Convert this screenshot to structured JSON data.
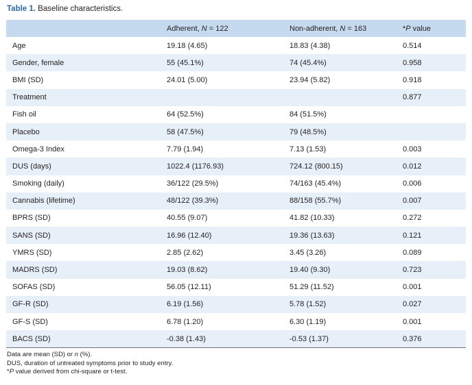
{
  "caption": {
    "label": "Table 1.",
    "text": "Baseline characteristics."
  },
  "table": {
    "header": {
      "col1": "",
      "col2_prefix": "Adherent, ",
      "col2_var": "N",
      "col2_suffix": " = 122",
      "col3_prefix": "Non-adherent, ",
      "col3_var": "N",
      "col3_suffix": " = 163",
      "col4_star": "*",
      "col4_var": "P",
      "col4_suffix": " value"
    },
    "rows": [
      {
        "label": "Age",
        "adherent": "19.18 (4.65)",
        "non_adherent": "18.83 (4.38)",
        "p": "0.514"
      },
      {
        "label": "Gender, female",
        "adherent": "55 (45.1%)",
        "non_adherent": "74 (45.4%)",
        "p": "0.958"
      },
      {
        "label": "BMI (SD)",
        "adherent": "24.01 (5.00)",
        "non_adherent": "23.94 (5.82)",
        "p": "0.918"
      },
      {
        "label": "Treatment",
        "adherent": "",
        "non_adherent": "",
        "p": "0.877"
      },
      {
        "label": "Fish oil",
        "adherent": "64 (52.5%)",
        "non_adherent": "84 (51.5%)",
        "p": ""
      },
      {
        "label": "Placebo",
        "adherent": "58 (47.5%)",
        "non_adherent": "79 (48.5%)",
        "p": ""
      },
      {
        "label": "Omega-3 Index",
        "adherent": "7.79 (1.94)",
        "non_adherent": "7.13 (1.53)",
        "p": "0.003"
      },
      {
        "label": "DUS (days)",
        "adherent": "1022.4 (1176.93)",
        "non_adherent": "724.12 (800.15)",
        "p": "0.012"
      },
      {
        "label": "Smoking (daily)",
        "adherent": "36/122 (29.5%)",
        "non_adherent": "74/163 (45.4%)",
        "p": "0.006"
      },
      {
        "label": "Cannabis (lifetime)",
        "adherent": "48/122 (39.3%)",
        "non_adherent": "88/158 (55.7%)",
        "p": "0.007"
      },
      {
        "label": "BPRS (SD)",
        "adherent": "40.55 (9.07)",
        "non_adherent": "41.82 (10.33)",
        "p": "0.272"
      },
      {
        "label": "SANS (SD)",
        "adherent": "16.96 (12.40)",
        "non_adherent": "19.36 (13.63)",
        "p": "0.121"
      },
      {
        "label": "YMRS (SD)",
        "adherent": "2.85 (2.62)",
        "non_adherent": "3.45 (3.26)",
        "p": "0.089"
      },
      {
        "label": "MADRS (SD)",
        "adherent": "19.03 (8.62)",
        "non_adherent": "19.40 (9.30)",
        "p": "0.723"
      },
      {
        "label": "SOFAS (SD)",
        "adherent": "56.05 (12.11)",
        "non_adherent": "51.29 (11.52)",
        "p": "0.001"
      },
      {
        "label": "GF-R (SD)",
        "adherent": "6.19 (1.56)",
        "non_adherent": "5.78 (1.52)",
        "p": "0.027"
      },
      {
        "label": "GF-S (SD)",
        "adherent": "6.78 (1.20)",
        "non_adherent": "6.30 (1.19)",
        "p": "0.001"
      },
      {
        "label": "BACS (SD)",
        "adherent": "-0.38 (1.43)",
        "non_adherent": "-0.53 (1.37)",
        "p": "0.376"
      }
    ]
  },
  "notes": {
    "line1_prefix": "Data are mean (SD) or ",
    "line1_var": "n",
    "line1_suffix": " (%).",
    "line2": "DUS, duration of untreated symptoms prior to study entry.",
    "line3_star": "*",
    "line3_var": "P",
    "line3_suffix": " value derived from chi-square or t-test."
  },
  "colors": {
    "caption_label": "#2e6aa6",
    "header_bg": "#c5daef",
    "stripe_bg": "#e7eff8",
    "text": "#231f20"
  }
}
